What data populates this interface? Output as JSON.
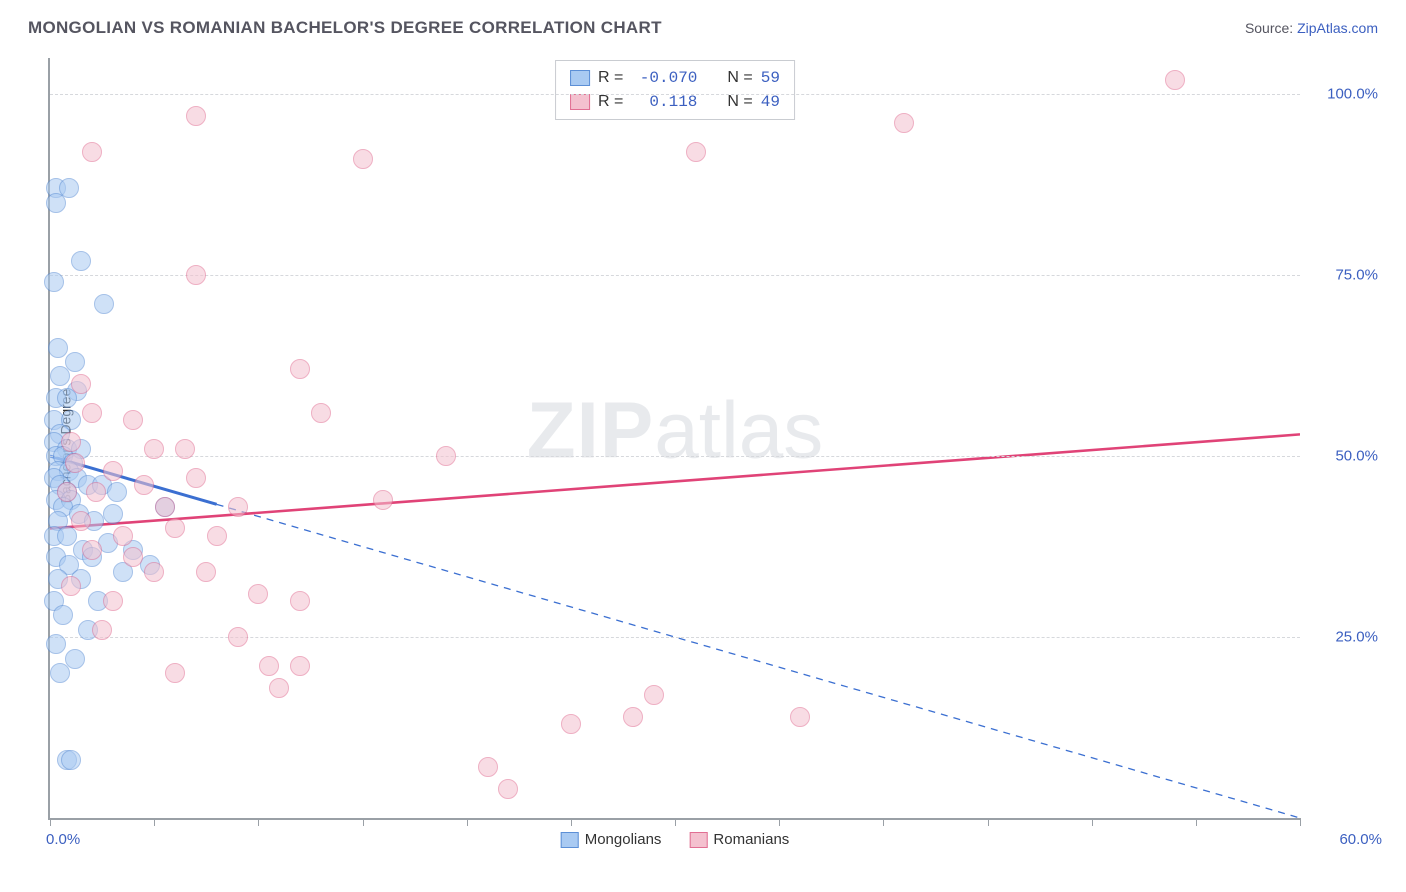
{
  "header": {
    "title": "MONGOLIAN VS ROMANIAN BACHELOR'S DEGREE CORRELATION CHART",
    "source_prefix": "Source: ",
    "source_link": "ZipAtlas.com"
  },
  "watermark": {
    "bold": "ZIP",
    "rest": "atlas"
  },
  "chart": {
    "type": "scatter",
    "ylabel": "Bachelor's Degree",
    "xlim": [
      0,
      60
    ],
    "ylim": [
      0,
      105
    ],
    "x_ticks": [
      0,
      5,
      10,
      15,
      20,
      25,
      30,
      35,
      40,
      45,
      50,
      55,
      60
    ],
    "x_tick_labels": {
      "first": "0.0%",
      "last": "60.0%"
    },
    "y_grid": [
      25,
      50,
      75,
      100
    ],
    "y_tick_labels": [
      "25.0%",
      "50.0%",
      "75.0%",
      "100.0%"
    ],
    "background_color": "#ffffff",
    "grid_color": "#d6d8dc",
    "axis_color": "#9aa0a6",
    "tick_label_color": "#3b5fc0",
    "marker_radius": 9,
    "series": [
      {
        "key": "mongolians",
        "label": "Mongolians",
        "fill": "#a9caf2",
        "stroke": "#5c8fd6",
        "R": "-0.070",
        "N": "59",
        "trend": {
          "x1": 0,
          "y1": 50,
          "x2": 60,
          "y2": 0,
          "solid_until_x": 8,
          "color": "#3b6fd1",
          "width_solid": 3,
          "width_dash": 1.3,
          "dash": "7,6"
        },
        "points": [
          [
            0.3,
            87
          ],
          [
            0.9,
            87
          ],
          [
            0.3,
            85
          ],
          [
            1.5,
            77
          ],
          [
            0.2,
            74
          ],
          [
            2.6,
            71
          ],
          [
            0.4,
            65
          ],
          [
            1.2,
            63
          ],
          [
            0.5,
            61
          ],
          [
            1.3,
            59
          ],
          [
            0.3,
            58
          ],
          [
            0.8,
            58
          ],
          [
            0.2,
            55
          ],
          [
            1.0,
            55
          ],
          [
            0.5,
            53
          ],
          [
            0.2,
            52
          ],
          [
            0.8,
            51
          ],
          [
            1.5,
            51
          ],
          [
            0.3,
            50
          ],
          [
            0.6,
            50
          ],
          [
            1.1,
            49
          ],
          [
            0.4,
            48
          ],
          [
            0.9,
            48
          ],
          [
            0.2,
            47
          ],
          [
            1.3,
            47
          ],
          [
            0.5,
            46
          ],
          [
            0.8,
            45
          ],
          [
            1.8,
            46
          ],
          [
            2.5,
            46
          ],
          [
            3.2,
            45
          ],
          [
            0.3,
            44
          ],
          [
            1.0,
            44
          ],
          [
            0.6,
            43
          ],
          [
            1.4,
            42
          ],
          [
            0.4,
            41
          ],
          [
            2.1,
            41
          ],
          [
            3.0,
            42
          ],
          [
            5.5,
            43
          ],
          [
            0.2,
            39
          ],
          [
            0.8,
            39
          ],
          [
            1.6,
            37
          ],
          [
            2.8,
            38
          ],
          [
            4.0,
            37
          ],
          [
            0.3,
            36
          ],
          [
            0.9,
            35
          ],
          [
            2.0,
            36
          ],
          [
            3.5,
            34
          ],
          [
            4.8,
            35
          ],
          [
            0.4,
            33
          ],
          [
            1.5,
            33
          ],
          [
            0.2,
            30
          ],
          [
            2.3,
            30
          ],
          [
            0.6,
            28
          ],
          [
            1.8,
            26
          ],
          [
            0.3,
            24
          ],
          [
            1.2,
            22
          ],
          [
            0.5,
            20
          ],
          [
            0.8,
            8
          ],
          [
            1.0,
            8
          ]
        ]
      },
      {
        "key": "romanians",
        "label": "Romanians",
        "fill": "#f4c1cf",
        "stroke": "#e16f93",
        "R": "0.118",
        "N": "49",
        "trend": {
          "x1": 0,
          "y1": 40,
          "x2": 60,
          "y2": 53,
          "solid_until_x": 60,
          "color": "#e04377",
          "width_solid": 2.6,
          "width_dash": 1,
          "dash": ""
        },
        "points": [
          [
            54,
            102
          ],
          [
            7,
            97
          ],
          [
            2,
            92
          ],
          [
            15,
            91
          ],
          [
            31,
            92
          ],
          [
            41,
            96
          ],
          [
            7,
            75
          ],
          [
            1.5,
            60
          ],
          [
            12,
            62
          ],
          [
            2,
            56
          ],
          [
            4,
            55
          ],
          [
            13,
            56
          ],
          [
            1,
            52
          ],
          [
            5,
            51
          ],
          [
            6.5,
            51
          ],
          [
            19,
            50
          ],
          [
            1.2,
            49
          ],
          [
            3,
            48
          ],
          [
            4.5,
            46
          ],
          [
            7,
            47
          ],
          [
            0.8,
            45
          ],
          [
            2.2,
            45
          ],
          [
            5.5,
            43
          ],
          [
            9,
            43
          ],
          [
            16,
            44
          ],
          [
            1.5,
            41
          ],
          [
            6,
            40
          ],
          [
            3.5,
            39
          ],
          [
            8,
            39
          ],
          [
            2,
            37
          ],
          [
            4,
            36
          ],
          [
            5,
            34
          ],
          [
            7.5,
            34
          ],
          [
            1,
            32
          ],
          [
            3,
            30
          ],
          [
            10,
            31
          ],
          [
            12,
            30
          ],
          [
            2.5,
            26
          ],
          [
            9,
            25
          ],
          [
            10.5,
            21
          ],
          [
            12,
            21
          ],
          [
            6,
            20
          ],
          [
            11,
            18
          ],
          [
            29,
            17
          ],
          [
            25,
            13
          ],
          [
            28,
            14
          ],
          [
            36,
            14
          ],
          [
            21,
            7
          ],
          [
            22,
            4
          ]
        ]
      }
    ],
    "legend_top_labels": {
      "R": "R =",
      "N": "N ="
    },
    "legend_bottom_order": [
      "mongolians",
      "romanians"
    ]
  }
}
